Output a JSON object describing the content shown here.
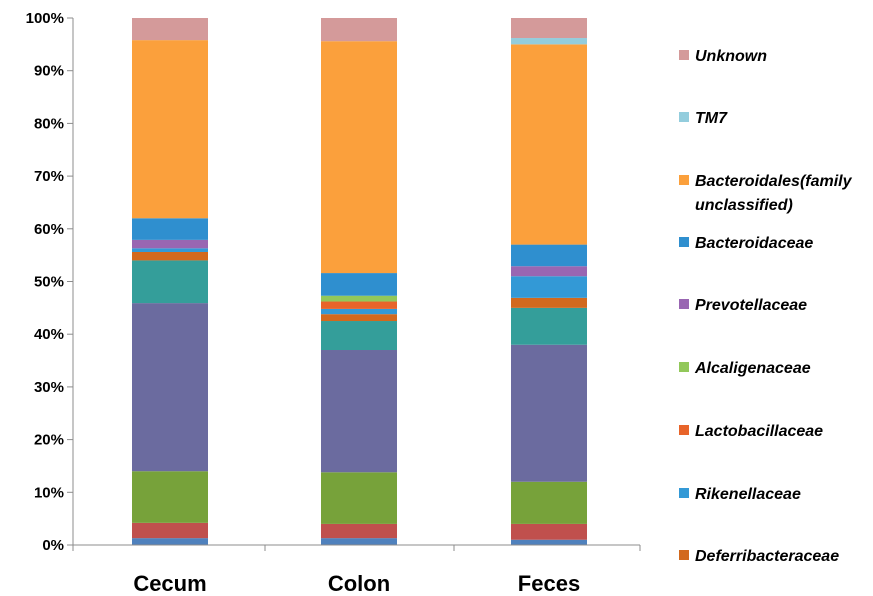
{
  "chart_data": {
    "type": "bar",
    "stacked": true,
    "stack_mode": "percent",
    "categories": [
      "Cecum",
      "Colon",
      "Feces"
    ],
    "ylim": [
      0,
      100
    ],
    "yticks": [
      "0%",
      "10%",
      "20%",
      "30%",
      "40%",
      "50%",
      "60%",
      "70%",
      "80%",
      "90%",
      "100%"
    ],
    "legend_position": "right",
    "grid": false,
    "series": [
      {
        "color": "#4f81bd",
        "values": [
          1.3,
          1.3,
          1.0
        ]
      },
      {
        "color": "#c0504d",
        "values": [
          2.9,
          2.7,
          3.0
        ]
      },
      {
        "color": "#77a23a",
        "values": [
          9.8,
          9.8,
          8.0
        ]
      },
      {
        "color": "#6b6b9f",
        "values": [
          31.9,
          23.2,
          26.0
        ]
      },
      {
        "color": "#349e9a",
        "values": [
          8.1,
          5.5,
          7.0
        ]
      },
      {
        "name": "Deferribacteraceae",
        "color": "#d2691e",
        "values": [
          1.6,
          1.3,
          1.9
        ]
      },
      {
        "name": "Rikenellaceae",
        "color": "#3399d6",
        "values": [
          0.7,
          1.0,
          4.1
        ]
      },
      {
        "name": "Lactobacillaceae",
        "color": "#e8642a",
        "values": [
          0.0,
          1.4,
          0.0
        ]
      },
      {
        "name": "Alcaligenaceae",
        "color": "#92c85a",
        "values": [
          0.0,
          1.1,
          0.0
        ]
      },
      {
        "name": "Prevotellaceae",
        "color": "#9966b2",
        "values": [
          1.6,
          0.0,
          1.9
        ]
      },
      {
        "name": "Bacteroidaceae",
        "color": "#2f8fcf",
        "values": [
          4.1,
          4.3,
          4.1
        ]
      },
      {
        "name": "Bacteroidales(family unclassified)",
        "color": "#fba03c",
        "values": [
          33.8,
          44.0,
          38.0
        ]
      },
      {
        "name": "TM7",
        "color": "#93cddd",
        "values": [
          0.0,
          0.0,
          1.2
        ]
      },
      {
        "name": "Unknown",
        "color": "#d49a9a",
        "values": [
          4.2,
          4.4,
          3.8
        ]
      }
    ],
    "legend": [
      {
        "lines": [
          "Unknown"
        ],
        "color": "#d49a9a"
      },
      {
        "lines": [
          "TM7"
        ],
        "color": "#93cddd"
      },
      {
        "lines": [
          "Bacteroidales(family",
          "unclassified)"
        ],
        "color": "#fba03c"
      },
      {
        "lines": [
          "Bacteroidaceae"
        ],
        "color": "#2f8fcf"
      },
      {
        "lines": [
          "Prevotellaceae"
        ],
        "color": "#9966b2"
      },
      {
        "lines": [
          "Alcaligenaceae"
        ],
        "color": "#92c85a"
      },
      {
        "lines": [
          "Lactobacillaceae"
        ],
        "color": "#e8642a"
      },
      {
        "lines": [
          "Rikenellaceae"
        ],
        "color": "#3399d6"
      },
      {
        "lines": [
          "Deferribacteraceae"
        ],
        "color": "#d2691e"
      }
    ]
  }
}
